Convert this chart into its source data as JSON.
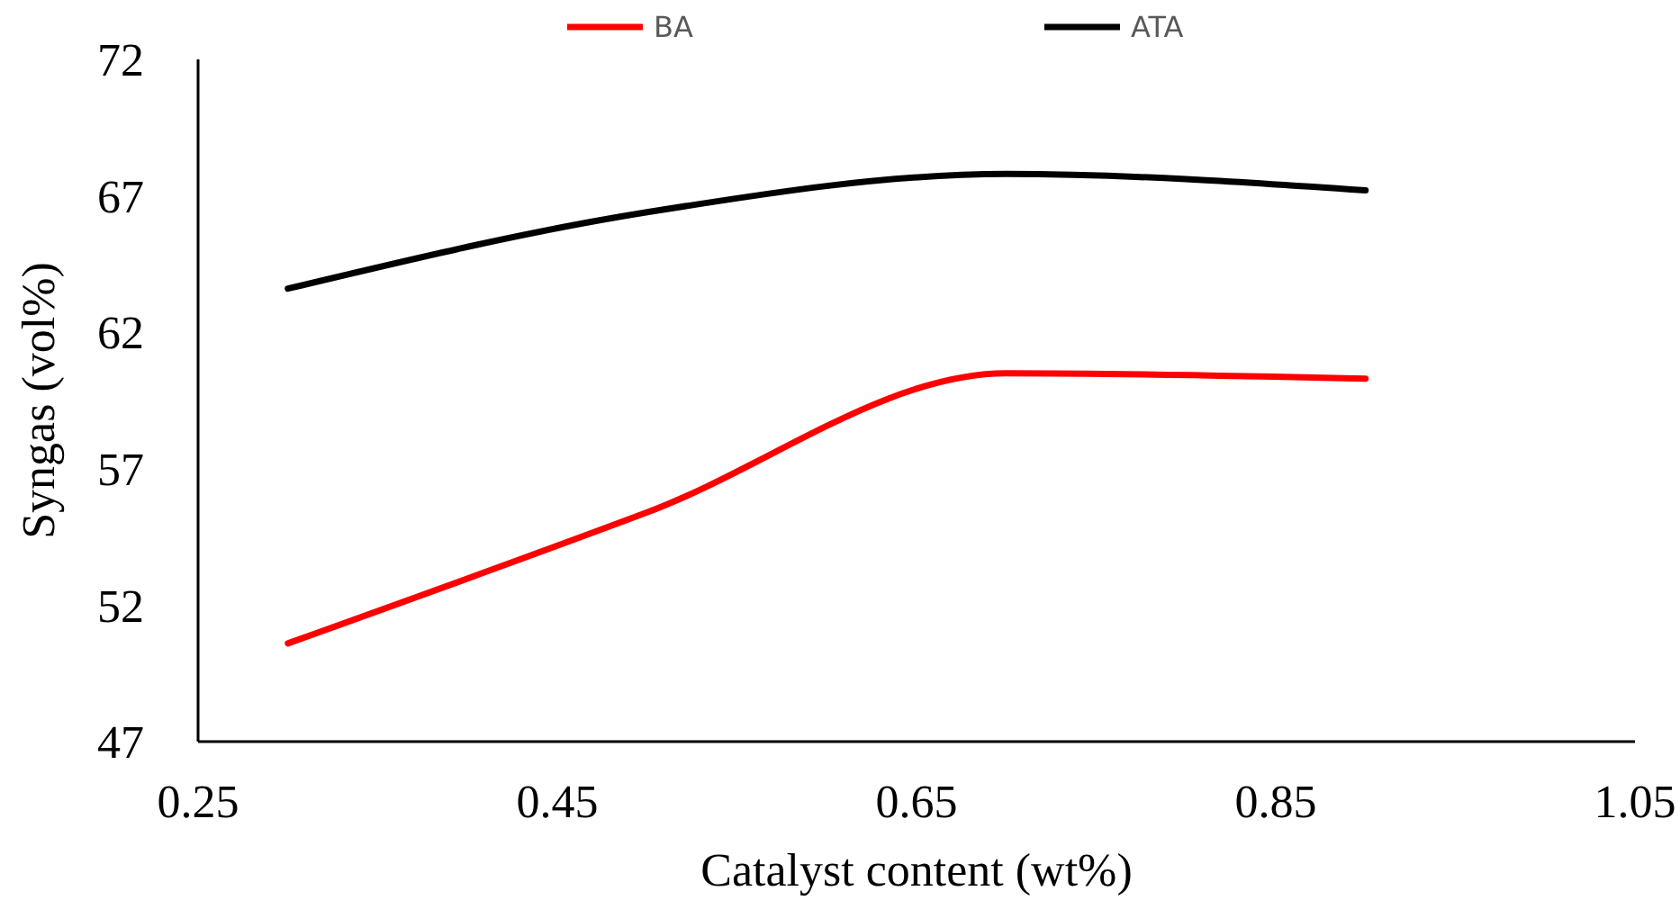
{
  "chart_data": {
    "type": "line",
    "xlabel": "Catalyst content (wt%)",
    "ylabel": "Syngas (vol%)",
    "x": [
      0.3,
      0.5,
      0.7,
      0.9
    ],
    "series": [
      {
        "name": "BA",
        "color": "#ff0000",
        "values": [
          50.6,
          55.4,
          60.5,
          60.3
        ]
      },
      {
        "name": "ATA",
        "color": "#000000",
        "values": [
          63.6,
          66.4,
          67.8,
          67.2
        ]
      }
    ],
    "xlim": [
      0.25,
      1.05
    ],
    "xticks": [
      0.25,
      0.45,
      0.65,
      0.85,
      1.05
    ],
    "ylim": [
      47,
      72
    ],
    "yticks": [
      47,
      52,
      57,
      62,
      67,
      72
    ],
    "grid": false,
    "legend": "top",
    "marker": "none",
    "line_style": "solid"
  }
}
